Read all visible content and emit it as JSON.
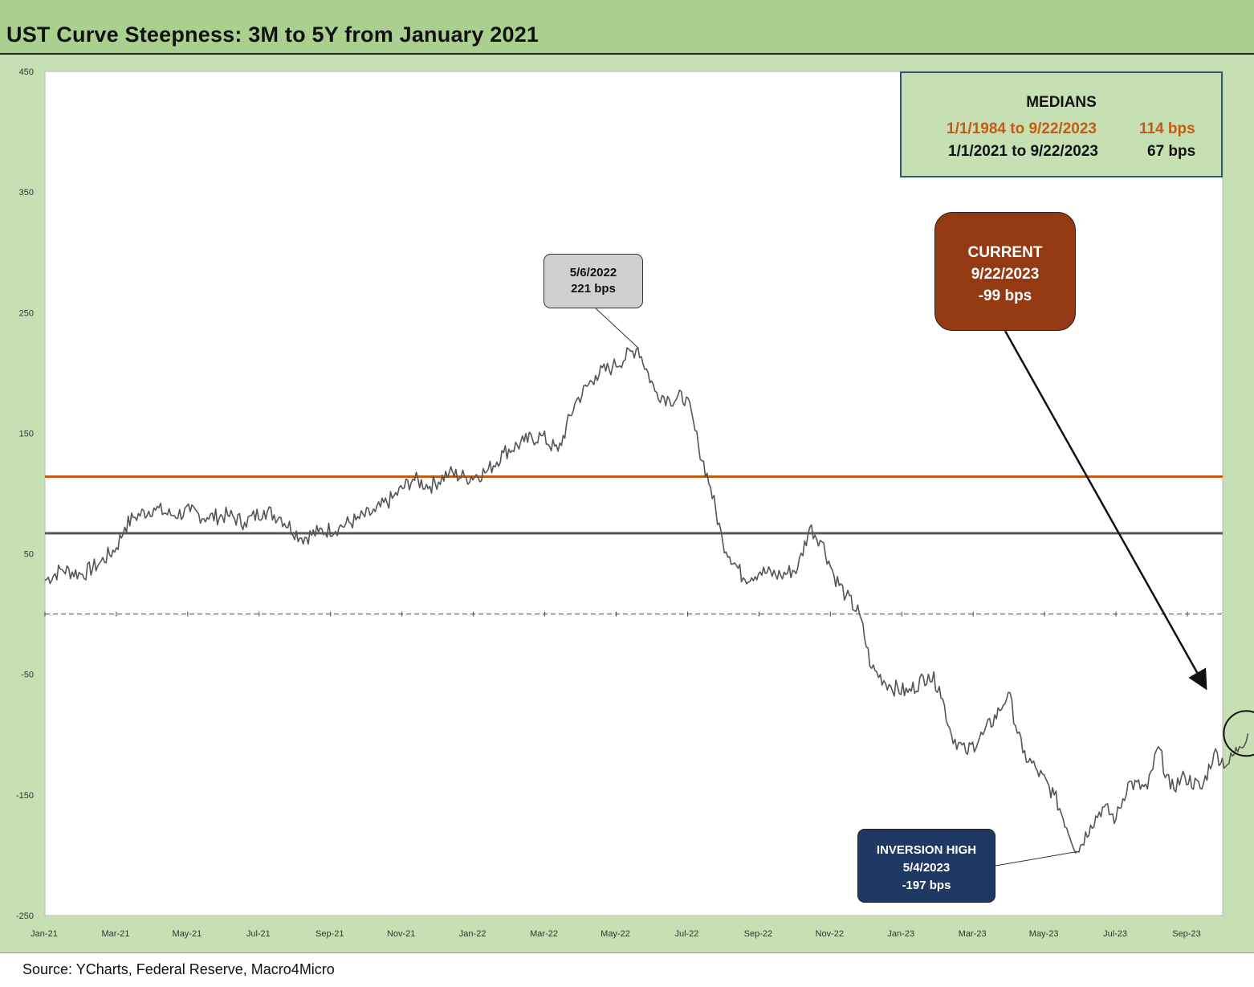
{
  "title": "UST Curve Steepness: 3M to 5Y from January 2021",
  "source": "Source: YCharts, Federal Reserve, Macro4Micro",
  "medians": {
    "heading": "MEDIANS",
    "long_range": "1/1/1984 to 9/22/2023",
    "long_value": "114 bps",
    "short_range": "1/1/2021 to 9/22/2023",
    "short_value": "67 bps"
  },
  "callouts": {
    "peak": {
      "date": "5/6/2022",
      "value": "221 bps"
    },
    "current": {
      "label": "CURRENT",
      "date": "9/22/2023",
      "value": "-99 bps"
    },
    "inversion": {
      "label": "INVERSION HIGH",
      "date": "5/4/2023",
      "value": "-197 bps"
    }
  },
  "colors": {
    "series": "#555555",
    "median_long": "#c55a11",
    "median_short": "#595959",
    "current_box": "#943a12",
    "inversion_box": "#203864",
    "peak_box": "#d0d0d0",
    "frame": "#c6e0b4",
    "title_band": "#a9d08e"
  },
  "chart_data": {
    "type": "line",
    "ylim": [
      -250,
      450
    ],
    "y_ticks": [
      450,
      350,
      250,
      150,
      50,
      -50,
      -150,
      -250
    ],
    "x_tick_labels": [
      "Jan-21",
      "Mar-21",
      "May-21",
      "Jul-21",
      "Sep-21",
      "Nov-21",
      "Jan-22",
      "Mar-22",
      "May-22",
      "Jul-22",
      "Sep-22",
      "Nov-22",
      "Jan-23",
      "Mar-23",
      "May-23",
      "Jul-23",
      "Sep-23"
    ],
    "x_range": [
      "2021-01-01",
      "2023-09-22"
    ],
    "reference_lines": [
      {
        "value": 114,
        "style": "solid",
        "color": "#c55a11"
      },
      {
        "value": 67,
        "style": "solid",
        "color": "#595959"
      },
      {
        "value": 0,
        "style": "dashed",
        "color": "#444444"
      }
    ],
    "series": [
      {
        "points": [
          [
            "2021-01-01",
            28
          ],
          [
            "2021-01-15",
            37
          ],
          [
            "2021-02-01",
            33
          ],
          [
            "2021-02-15",
            42
          ],
          [
            "2021-03-01",
            55
          ],
          [
            "2021-03-08",
            72
          ],
          [
            "2021-03-15",
            80
          ],
          [
            "2021-04-01",
            88
          ],
          [
            "2021-04-15",
            82
          ],
          [
            "2021-05-01",
            85
          ],
          [
            "2021-05-15",
            80
          ],
          [
            "2021-06-01",
            82
          ],
          [
            "2021-06-15",
            76
          ],
          [
            "2021-07-01",
            86
          ],
          [
            "2021-07-15",
            80
          ],
          [
            "2021-08-01",
            63
          ],
          [
            "2021-08-15",
            68
          ],
          [
            "2021-09-01",
            72
          ],
          [
            "2021-09-15",
            78
          ],
          [
            "2021-10-01",
            85
          ],
          [
            "2021-10-15",
            96
          ],
          [
            "2021-11-01",
            112
          ],
          [
            "2021-11-15",
            106
          ],
          [
            "2021-12-01",
            117
          ],
          [
            "2021-12-15",
            113
          ],
          [
            "2022-01-01",
            118
          ],
          [
            "2022-01-15",
            134
          ],
          [
            "2022-02-01",
            143
          ],
          [
            "2022-02-15",
            148
          ],
          [
            "2022-03-01",
            135
          ],
          [
            "2022-03-15",
            175
          ],
          [
            "2022-04-01",
            198
          ],
          [
            "2022-04-15",
            205
          ],
          [
            "2022-05-06",
            221
          ],
          [
            "2022-05-20",
            185
          ],
          [
            "2022-06-01",
            178
          ],
          [
            "2022-06-15",
            180
          ],
          [
            "2022-06-25",
            140
          ],
          [
            "2022-07-05",
            105
          ],
          [
            "2022-07-15",
            60
          ],
          [
            "2022-08-01",
            30
          ],
          [
            "2022-08-15",
            35
          ],
          [
            "2022-09-01",
            32
          ],
          [
            "2022-09-15",
            38
          ],
          [
            "2022-09-25",
            72
          ],
          [
            "2022-10-05",
            60
          ],
          [
            "2022-10-15",
            32
          ],
          [
            "2022-10-25",
            15
          ],
          [
            "2022-11-05",
            0
          ],
          [
            "2022-11-15",
            -45
          ],
          [
            "2022-12-01",
            -60
          ],
          [
            "2022-12-15",
            -65
          ],
          [
            "2023-01-01",
            -50
          ],
          [
            "2023-01-10",
            -60
          ],
          [
            "2023-01-20",
            -100
          ],
          [
            "2023-02-01",
            -115
          ],
          [
            "2023-02-15",
            -100
          ],
          [
            "2023-03-01",
            -80
          ],
          [
            "2023-03-08",
            -65
          ],
          [
            "2023-03-20",
            -115
          ],
          [
            "2023-04-01",
            -130
          ],
          [
            "2023-04-15",
            -150
          ],
          [
            "2023-05-04",
            -197
          ],
          [
            "2023-05-15",
            -175
          ],
          [
            "2023-05-25",
            -160
          ],
          [
            "2023-06-05",
            -170
          ],
          [
            "2023-06-15",
            -140
          ],
          [
            "2023-07-01",
            -145
          ],
          [
            "2023-07-10",
            -110
          ],
          [
            "2023-07-20",
            -145
          ],
          [
            "2023-08-01",
            -135
          ],
          [
            "2023-08-15",
            -145
          ],
          [
            "2023-08-25",
            -115
          ],
          [
            "2023-09-05",
            -125
          ],
          [
            "2023-09-15",
            -110
          ],
          [
            "2023-09-22",
            -99
          ]
        ]
      }
    ]
  }
}
